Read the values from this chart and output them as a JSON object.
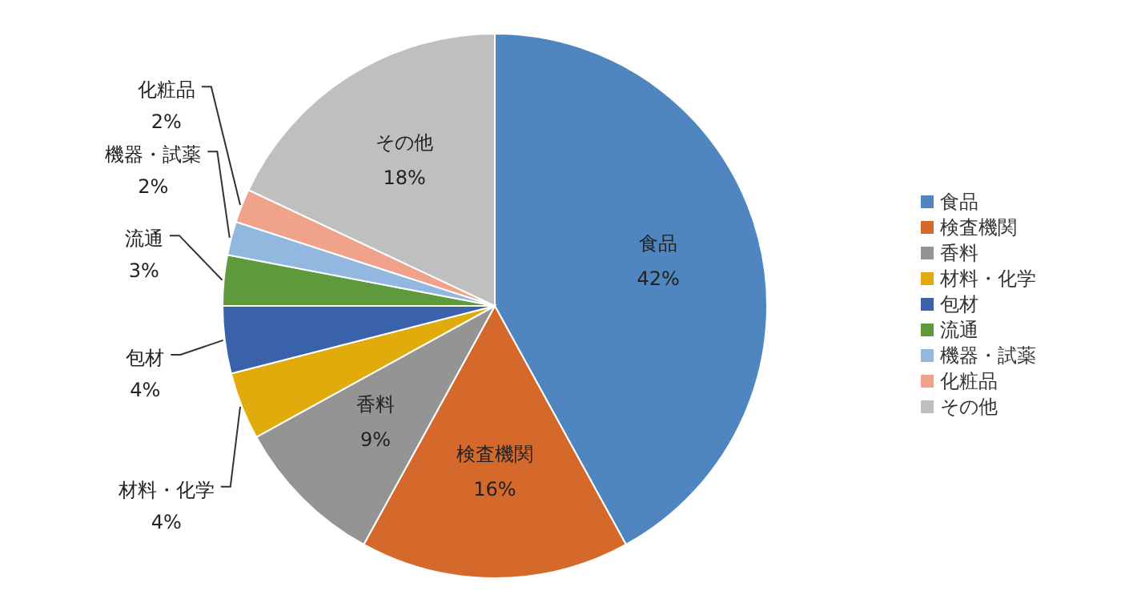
{
  "chart_data": {
    "type": "pie",
    "categories": [
      "食品",
      "検査機関",
      "香料",
      "材料・化学",
      "包材",
      "流通",
      "機器・試薬",
      "化粧品",
      "その他"
    ],
    "values": [
      42,
      16,
      9,
      4,
      4,
      3,
      2,
      2,
      18
    ],
    "value_labels": [
      "42%",
      "16%",
      "9%",
      "4%",
      "4%",
      "3%",
      "2%",
      "2%",
      "18%"
    ],
    "colors": [
      "#4f86c0",
      "#d4692b",
      "#949494",
      "#e2ab0c",
      "#3a62ab",
      "#5e9a3c",
      "#92b8e0",
      "#f0a28a",
      "#bfbfbf"
    ],
    "legend": "right"
  }
}
